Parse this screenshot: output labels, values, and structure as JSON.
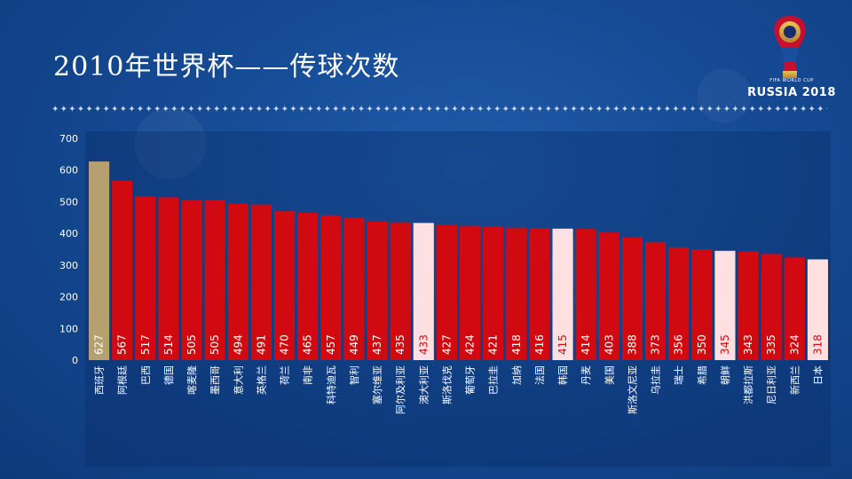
{
  "title": "2010年世界杯——传球次数",
  "decoration": {
    "dots": "✦✦✦✦✦✦✦✦✦✦✦✦✦✦✦✦✦✦✦✦✦✦✦✦✦✦✦✦✦✦✦✦✦✦✦✦✦✦✦✦✦✦✦✦✦✦✦✦✦✦✦✦✦✦✦✦✦✦✦✦✦✦✦✦✦✦✦✦✦✦✦✦✦✦✦✦✦✦✦✦✦✦✦✦✦✦✦✦✦✦✦✦"
  },
  "logo": {
    "sub": "FIFA WORLD CUP",
    "main": "RUSSIA 2018"
  },
  "colors": {
    "red": "#d10a11",
    "gold": "#b6a070",
    "pink": "#ffe0e0",
    "axis_text": "#ffffff",
    "plot_bg": "#0a2a63"
  },
  "chart_data": {
    "type": "bar",
    "categories": [
      "西班牙",
      "阿根廷",
      "巴西",
      "德国",
      "喀麦隆",
      "墨西哥",
      "意大利",
      "英格兰",
      "荷兰",
      "南非",
      "科特迪瓦",
      "智利",
      "塞尔维亚",
      "阿尔及利亚",
      "澳大利亚",
      "斯洛伐克",
      "葡萄牙",
      "巴拉圭",
      "加纳",
      "法国",
      "韩国",
      "丹麦",
      "美国",
      "斯洛文尼亚",
      "乌拉圭",
      "瑞士",
      "希腊",
      "朝鲜",
      "洪都拉斯",
      "尼日利亚",
      "新西兰",
      "日本"
    ],
    "values": [
      627,
      567,
      517,
      514,
      505,
      505,
      494,
      491,
      470,
      465,
      457,
      449,
      437,
      435,
      433,
      427,
      424,
      421,
      418,
      416,
      415,
      414,
      403,
      388,
      373,
      356,
      350,
      345,
      343,
      335,
      324,
      318
    ],
    "highlight": {
      "0": "gold",
      "14": "pink",
      "20": "pink",
      "27": "pink",
      "31": "pink"
    },
    "ylim": [
      0,
      700
    ],
    "yticks": [
      0,
      100,
      200,
      300,
      400,
      500,
      600,
      700
    ],
    "grid": false,
    "legend": "none"
  }
}
